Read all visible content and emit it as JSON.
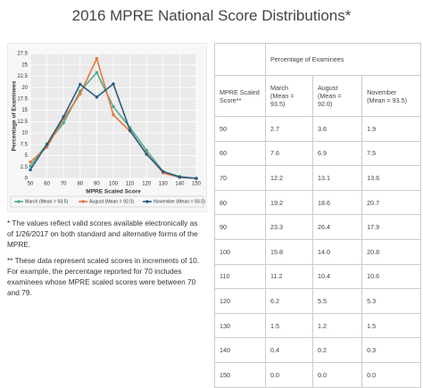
{
  "title": "2016 MPRE National Score Distributions*",
  "chart_data": {
    "type": "line",
    "y_label": "Percentage of Examinees",
    "x_label": "MPRE Scaled Score",
    "x": [
      50,
      60,
      70,
      80,
      90,
      100,
      110,
      120,
      130,
      140,
      150
    ],
    "xlim": [
      50,
      150
    ],
    "xticks": [
      50,
      60,
      70,
      80,
      90,
      100,
      110,
      120,
      130,
      140,
      150
    ],
    "ylim": [
      0,
      27.5
    ],
    "yticks": [
      0,
      2.5,
      5,
      7.5,
      10,
      12.5,
      15,
      17.5,
      20,
      22.5,
      25,
      27.5
    ],
    "grid": true,
    "series": [
      {
        "name": "March (Mean = 93.5)",
        "color": "#4cae8c",
        "values": [
          2.7,
          7.6,
          12.2,
          19.2,
          23.3,
          15.8,
          11.2,
          6.2,
          1.5,
          0.4,
          0.0
        ]
      },
      {
        "name": "August (Mean = 92.0)",
        "color": "#e8773e",
        "values": [
          3.6,
          6.9,
          13.1,
          18.6,
          26.4,
          14.0,
          10.4,
          5.5,
          1.2,
          0.2,
          0.0
        ]
      },
      {
        "name": "November (Mean = 93.5)",
        "color": "#275d87",
        "values": [
          1.9,
          7.5,
          13.6,
          20.7,
          17.9,
          20.8,
          10.6,
          5.3,
          1.5,
          0.3,
          0.0
        ]
      }
    ]
  },
  "notes": [
    "* The values reflect valid scores available electronically as of 1/26/2017 on both standard and alternative forms of the MPRE.",
    "** These data represent scaled scores in increments of 10. For example, the percentage reported for 70 includes examinees whose MPRE scaled scores were between 70 and 79."
  ],
  "table": {
    "group_header": "Percentage of Examinees",
    "columns": [
      "MPRE Scaled Score**",
      "March (Mean = 93.5)",
      "August (Mean = 92.0)",
      "November (Mean = 93.5)"
    ],
    "rows": [
      [
        "50",
        "2.7",
        "3.6",
        "1.9"
      ],
      [
        "60",
        "7.6",
        "6.9",
        "7.5"
      ],
      [
        "70",
        "12.2",
        "13.1",
        "13.6"
      ],
      [
        "80",
        "19.2",
        "18.6",
        "20.7"
      ],
      [
        "90",
        "23.3",
        "26.4",
        "17.9"
      ],
      [
        "100",
        "15.8",
        "14.0",
        "20.8"
      ],
      [
        "110",
        "11.2",
        "10.4",
        "10.6"
      ],
      [
        "120",
        "6.2",
        "5.5",
        "5.3"
      ],
      [
        "130",
        "1.5",
        "1.2",
        "1.5"
      ],
      [
        "140",
        "0.4",
        "0.2",
        "0.3"
      ],
      [
        "150",
        "0.0",
        "0.0",
        "0.0"
      ]
    ]
  }
}
